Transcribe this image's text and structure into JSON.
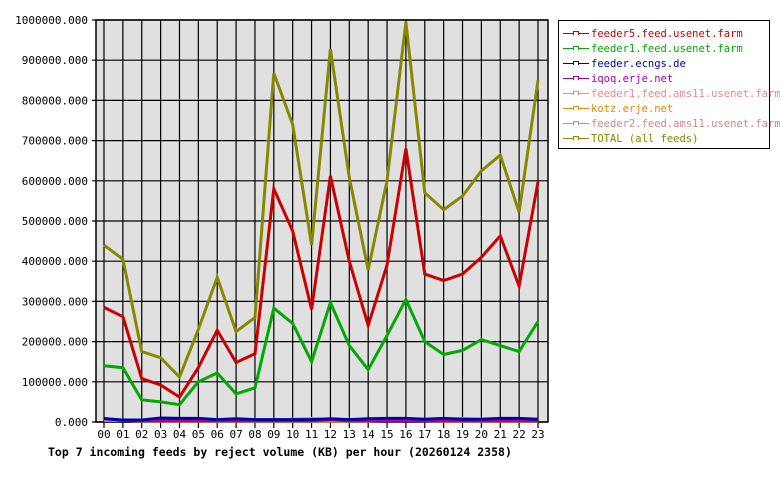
{
  "chart_data": {
    "type": "line",
    "title": "Top 7 incoming feeds by reject volume (KB) per hour (20260124 2358)",
    "xlabel": "",
    "ylabel": "",
    "ylim": [
      0,
      1000000
    ],
    "grid": true,
    "legend_position": "right",
    "x": [
      "00",
      "01",
      "02",
      "03",
      "04",
      "05",
      "06",
      "07",
      "08",
      "09",
      "10",
      "11",
      "12",
      "13",
      "14",
      "15",
      "16",
      "17",
      "18",
      "19",
      "20",
      "21",
      "22",
      "23"
    ],
    "y_ticks": [
      "0.000",
      "100000.000",
      "200000.000",
      "300000.000",
      "400000.000",
      "500000.000",
      "600000.000",
      "700000.000",
      "800000.000",
      "900000.000",
      "1000000.000"
    ],
    "series": [
      {
        "name": "feeder5.feed.usenet.farm",
        "color": "#cc0000",
        "values": [
          285000,
          262000,
          108000,
          92000,
          62000,
          135000,
          228000,
          148000,
          170000,
          580000,
          475000,
          280000,
          612000,
          400000,
          240000,
          390000,
          680000,
          368000,
          352000,
          368000,
          410000,
          463000,
          338000,
          597000
        ]
      },
      {
        "name": "feeder1.feed.usenet.farm",
        "color": "#00aa00",
        "values": [
          140000,
          135000,
          55000,
          50000,
          43000,
          100000,
          122000,
          70000,
          85000,
          283000,
          245000,
          150000,
          297000,
          190000,
          130000,
          215000,
          305000,
          200000,
          168000,
          178000,
          205000,
          190000,
          175000,
          250000
        ]
      },
      {
        "name": "feeder.ecngs.de",
        "color": "#0000aa",
        "values": [
          8000,
          5000,
          5000,
          10000,
          9000,
          9000,
          6000,
          8000,
          6000,
          6000,
          6000,
          6000,
          8000,
          6000,
          8000,
          9000,
          9000,
          7000,
          9000,
          7000,
          7000,
          9000,
          9000,
          7000
        ]
      },
      {
        "name": "iqoq.erje.net",
        "color": "#aa00aa",
        "values": [
          9000,
          4000,
          3000,
          3000,
          3000,
          3000,
          3000,
          3000,
          3000,
          3000,
          3000,
          3000,
          6000,
          3000,
          3000,
          3000,
          3000,
          3000,
          3000,
          3000,
          3000,
          3000,
          3000,
          3000
        ]
      },
      {
        "name": "feeder1.feed.ams11.usenet.farm",
        "color": "#ee8888",
        "values": [
          5000,
          5000,
          5000,
          4000,
          4000,
          4000,
          4000,
          4000,
          4000,
          4000,
          7000,
          9000,
          6000,
          6000,
          6000,
          6000,
          6000,
          5000,
          6000,
          9000,
          6000,
          5000,
          5000,
          5000
        ]
      },
      {
        "name": "kotz.erje.net",
        "color": "#ee8800",
        "values": [
          5000,
          5000,
          2000,
          2000,
          2000,
          2000,
          2000,
          2000,
          2000,
          2000,
          2000,
          2000,
          2000,
          2000,
          2000,
          5000,
          5000,
          3000,
          2000,
          2000,
          2000,
          2000,
          2000,
          2000
        ]
      },
      {
        "name": "feeder2.feed.ams11.usenet.farm",
        "color": "#cc8888",
        "values": [
          4000,
          4000,
          4000,
          4000,
          4000,
          4000,
          4000,
          4000,
          4000,
          4000,
          4000,
          4000,
          4000,
          4000,
          4000,
          4000,
          4000,
          4000,
          4000,
          4000,
          4000,
          4000,
          4000,
          4000
        ]
      },
      {
        "name": "TOTAL (all feeds)",
        "color": "#888800",
        "values": [
          440000,
          405000,
          175000,
          160000,
          112000,
          230000,
          360000,
          225000,
          260000,
          868000,
          740000,
          440000,
          928000,
          608000,
          378000,
          600000,
          995000,
          570000,
          528000,
          562000,
          625000,
          664000,
          522000,
          850000
        ]
      }
    ]
  },
  "legend": {
    "items": [
      {
        "label": "feeder5.feed.usenet.farm",
        "color": "#cc0000"
      },
      {
        "label": "feeder1.feed.usenet.farm",
        "color": "#00aa00"
      },
      {
        "label": "feeder.ecngs.de",
        "color": "#0000aa"
      },
      {
        "label": "iqoq.erje.net",
        "color": "#aa00aa"
      },
      {
        "label": "feeder1.feed.ams11.usenet.farm",
        "color": "#ee8888"
      },
      {
        "label": "kotz.erje.net",
        "color": "#ee8800"
      },
      {
        "label": "feeder2.feed.ams11.usenet.farm",
        "color": "#cc8888"
      },
      {
        "label": "TOTAL (all feeds)",
        "color": "#888800"
      }
    ]
  },
  "colors": {
    "plot_background": "#e0e0e0",
    "grid": "#000000",
    "axis": "#000000"
  }
}
